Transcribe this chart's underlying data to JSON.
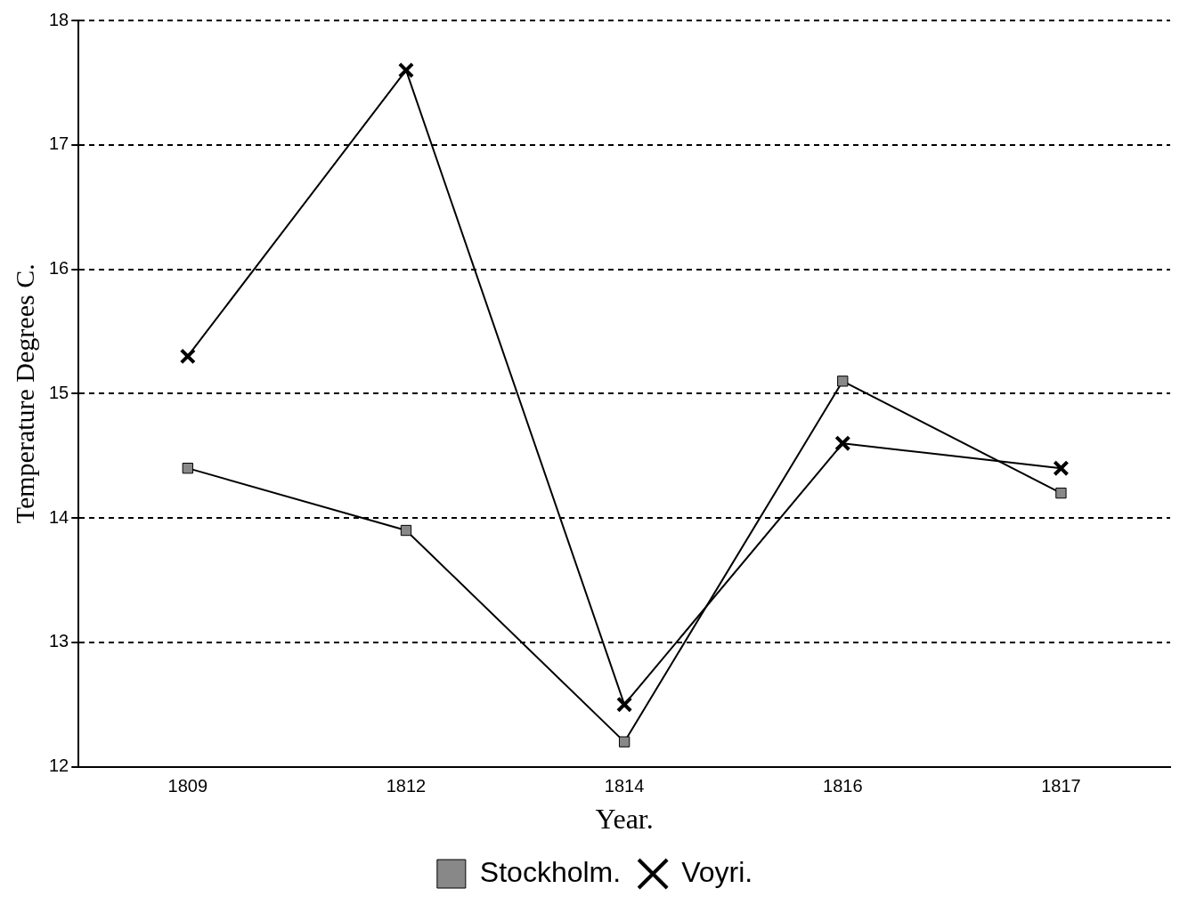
{
  "chart_data": {
    "type": "line",
    "xlabel": "Year.",
    "ylabel": "Temperature Degrees C.",
    "categories": [
      "1809",
      "1812",
      "1814",
      "1816",
      "1817"
    ],
    "series": [
      {
        "name": "Stockholm.",
        "color": "#000000",
        "marker": "square",
        "values": [
          14.4,
          13.9,
          12.2,
          15.1,
          14.2
        ]
      },
      {
        "name": "Voyri.",
        "color": "#000000",
        "marker": "cross",
        "values": [
          15.3,
          17.6,
          12.5,
          14.6,
          14.4
        ]
      }
    ],
    "ylim": [
      12,
      18
    ],
    "yticks": [
      12,
      13,
      14,
      15,
      16,
      17,
      18
    ],
    "grid": "y",
    "legend": "bottom",
    "line_style": "solid"
  }
}
